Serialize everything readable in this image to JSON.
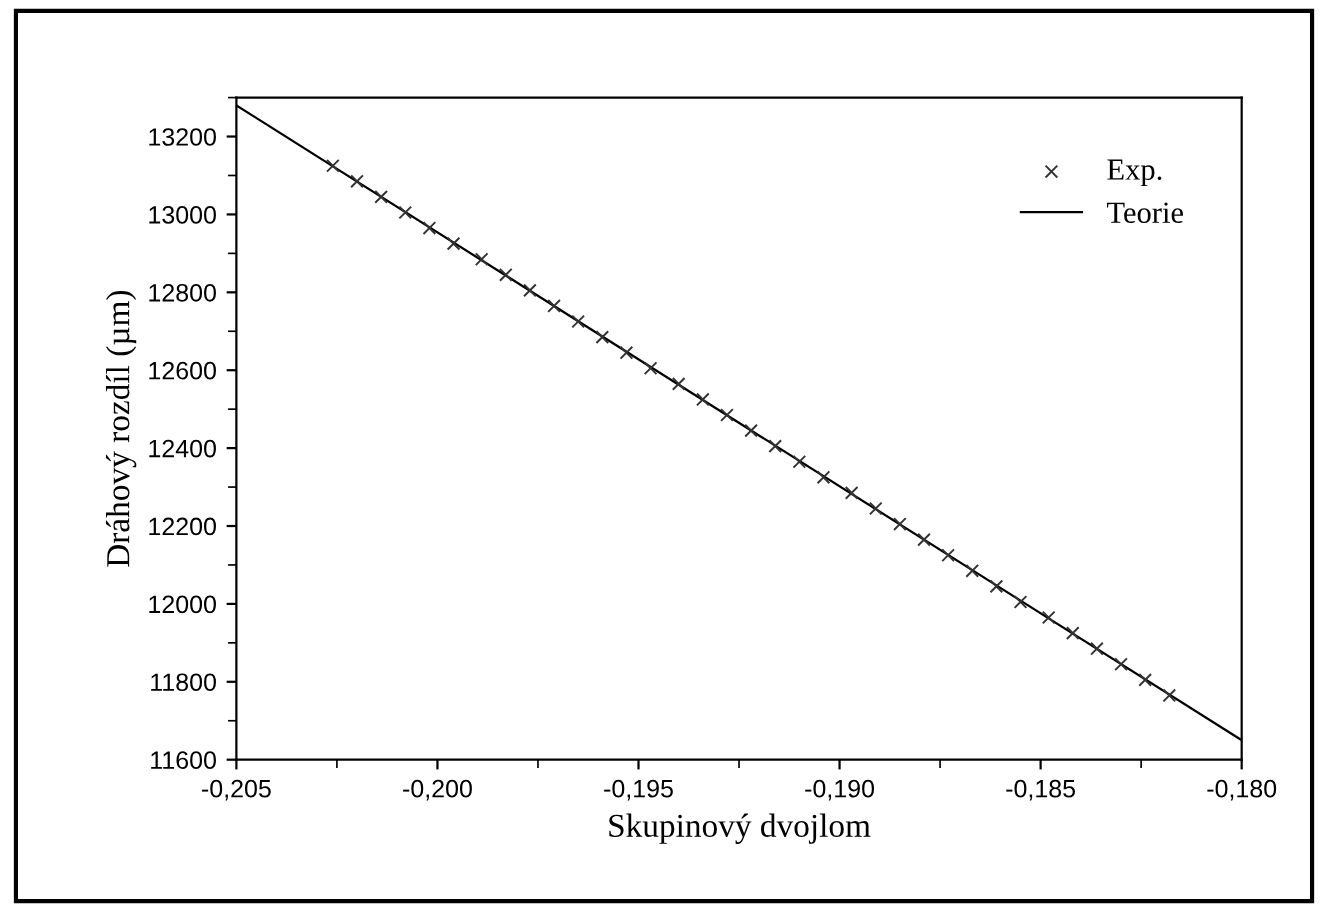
{
  "chart_data": {
    "type": "scatter",
    "xlabel": "Skupinový dvojlom",
    "ylabel": "Dráhový rozdíl (µm)",
    "xlim": [
      -0.205,
      -0.18
    ],
    "ylim": [
      11600,
      13300
    ],
    "xticks": [
      {
        "value": -0.205,
        "label": "-0,205"
      },
      {
        "value": -0.2,
        "label": "-0,200"
      },
      {
        "value": -0.195,
        "label": "-0,195"
      },
      {
        "value": -0.19,
        "label": "-0,190"
      },
      {
        "value": -0.185,
        "label": "-0,185"
      },
      {
        "value": -0.18,
        "label": "-0,180"
      }
    ],
    "yticks": [
      11600,
      11800,
      12000,
      12200,
      12400,
      12600,
      12800,
      13000,
      13200
    ],
    "grid": false,
    "legend": "top right",
    "series": [
      {
        "name": "Exp.",
        "marker": "cross",
        "color": "#333333",
        "x": [
          -0.2026,
          -0.202,
          -0.2014,
          -0.2008,
          -0.2002,
          -0.1996,
          -0.1989,
          -0.1983,
          -0.1977,
          -0.1971,
          -0.1965,
          -0.1959,
          -0.1953,
          -0.1947,
          -0.194,
          -0.1934,
          -0.1928,
          -0.1922,
          -0.1916,
          -0.191,
          -0.1904,
          -0.1897,
          -0.1891,
          -0.1885,
          -0.1879,
          -0.1873,
          -0.1867,
          -0.1861,
          -0.1855,
          -0.1848,
          -0.1842,
          -0.1836,
          -0.183,
          -0.1824,
          -0.1818
        ],
        "values": [
          13125,
          13085,
          13045,
          13005,
          12965,
          12925,
          12885,
          12845,
          12805,
          12765,
          12725,
          12685,
          12645,
          12605,
          12565,
          12525,
          12485,
          12445,
          12405,
          12365,
          12325,
          12285,
          12245,
          12205,
          12165,
          12125,
          12085,
          12045,
          12005,
          11965,
          11925,
          11885,
          11845,
          11805,
          11765
        ]
      },
      {
        "name": "Teorie",
        "type": "line",
        "line_style": "solid",
        "color": "#000000",
        "x": [
          -0.205,
          -0.18
        ],
        "values": [
          13280,
          11650
        ]
      }
    ]
  }
}
